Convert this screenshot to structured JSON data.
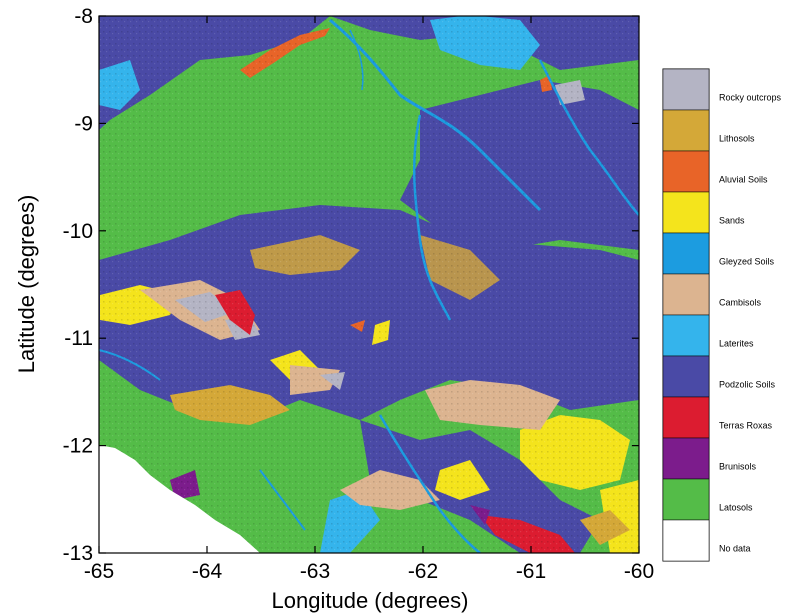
{
  "axes": {
    "xlabel": "Longitude (degrees)",
    "ylabel": "Latitude (degrees)",
    "x_ticks": [
      "-65",
      "-64",
      "-63",
      "-62",
      "-61",
      "-60"
    ],
    "y_ticks": [
      "-8",
      "-9",
      "-10",
      "-11",
      "-12",
      "-13"
    ],
    "xlim": [
      -65,
      -60
    ],
    "ylim": [
      -13,
      -8
    ]
  },
  "legend": [
    {
      "label": "Rocky outcrops",
      "color": "#b4b4c4"
    },
    {
      "label": "Lithosols",
      "color": "#d4a838"
    },
    {
      "label": "Aluvial Soils",
      "color": "#e86428"
    },
    {
      "label": "Sands",
      "color": "#f4e41c"
    },
    {
      "label": "Gleyzed Soils",
      "color": "#1c9ce0"
    },
    {
      "label": "Cambisols",
      "color": "#dcb490"
    },
    {
      "label": "Laterites",
      "color": "#34b4ec"
    },
    {
      "label": "Podzolic Soils",
      "color": "#4a4aa6"
    },
    {
      "label": "Terras Roxas",
      "color": "#dc1c30"
    },
    {
      "label": "Brunisols",
      "color": "#7c1c8c"
    },
    {
      "label": "Latosols",
      "color": "#54bc48"
    },
    {
      "label": "No data",
      "color": "#ffffff"
    }
  ]
}
